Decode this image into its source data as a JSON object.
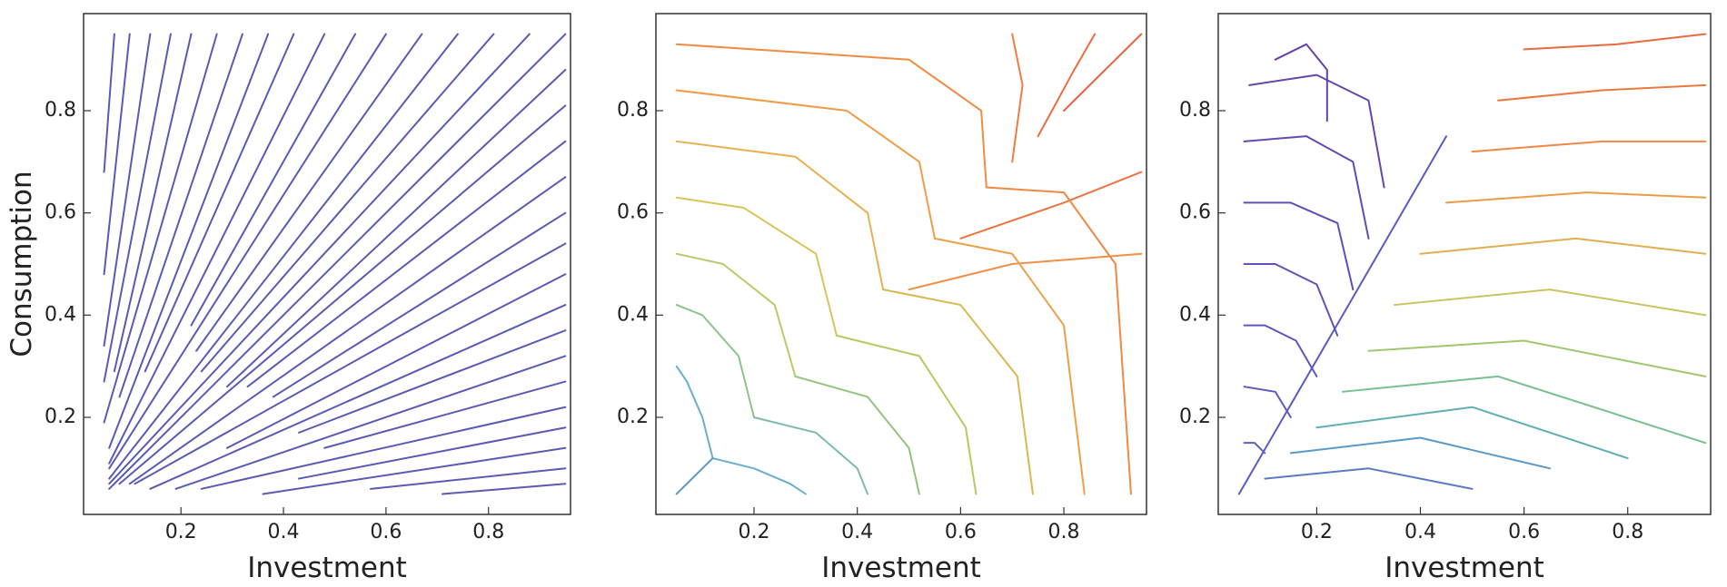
{
  "chart_data": [
    {
      "type": "streamplot",
      "xlabel": "Investment",
      "ylabel": "Consumption",
      "color": "#5a5ab4",
      "xlim": [
        0.01,
        0.96
      ],
      "ylim": [
        0.01,
        0.99
      ],
      "xticks": [
        0.2,
        0.4,
        0.6,
        0.8
      ],
      "yticks": [
        0.2,
        0.4,
        0.6,
        0.8
      ],
      "lines": [
        {
          "x": [
            0.05,
            0.07
          ],
          "y": [
            0.68,
            0.95
          ]
        },
        {
          "x": [
            0.05,
            0.1
          ],
          "y": [
            0.48,
            0.95
          ]
        },
        {
          "x": [
            0.05,
            0.14
          ],
          "y": [
            0.34,
            0.95
          ]
        },
        {
          "x": [
            0.05,
            0.18
          ],
          "y": [
            0.27,
            0.95
          ]
        },
        {
          "x": [
            0.07,
            0.22
          ],
          "y": [
            0.29,
            0.95
          ]
        },
        {
          "x": [
            0.05,
            0.27
          ],
          "y": [
            0.19,
            0.95
          ]
        },
        {
          "x": [
            0.08,
            0.32
          ],
          "y": [
            0.24,
            0.95
          ]
        },
        {
          "x": [
            0.06,
            0.37
          ],
          "y": [
            0.14,
            0.95
          ]
        },
        {
          "x": [
            0.13,
            0.42
          ],
          "y": [
            0.29,
            0.95
          ]
        },
        {
          "x": [
            0.06,
            0.48
          ],
          "y": [
            0.11,
            0.95
          ]
        },
        {
          "x": [
            0.22,
            0.54
          ],
          "y": [
            0.38,
            0.95
          ]
        },
        {
          "x": [
            0.06,
            0.6
          ],
          "y": [
            0.1,
            0.95
          ]
        },
        {
          "x": [
            0.23,
            0.67
          ],
          "y": [
            0.33,
            0.95
          ]
        },
        {
          "x": [
            0.06,
            0.74
          ],
          "y": [
            0.08,
            0.95
          ]
        },
        {
          "x": [
            0.24,
            0.81
          ],
          "y": [
            0.29,
            0.95
          ]
        },
        {
          "x": [
            0.06,
            0.88
          ],
          "y": [
            0.07,
            0.95
          ]
        },
        {
          "x": [
            0.06,
            0.95
          ],
          "y": [
            0.06,
            0.95
          ]
        },
        {
          "x": [
            0.29,
            0.95
          ],
          "y": [
            0.26,
            0.88
          ]
        },
        {
          "x": [
            0.08,
            0.95
          ],
          "y": [
            0.07,
            0.81
          ]
        },
        {
          "x": [
            0.33,
            0.95
          ],
          "y": [
            0.26,
            0.74
          ]
        },
        {
          "x": [
            0.1,
            0.95
          ],
          "y": [
            0.07,
            0.67
          ]
        },
        {
          "x": [
            0.38,
            0.95
          ],
          "y": [
            0.24,
            0.6
          ]
        },
        {
          "x": [
            0.11,
            0.95
          ],
          "y": [
            0.07,
            0.54
          ]
        },
        {
          "x": [
            0.29,
            0.95
          ],
          "y": [
            0.14,
            0.48
          ]
        },
        {
          "x": [
            0.14,
            0.95
          ],
          "y": [
            0.06,
            0.42
          ]
        },
        {
          "x": [
            0.43,
            0.95
          ],
          "y": [
            0.17,
            0.37
          ]
        },
        {
          "x": [
            0.19,
            0.95
          ],
          "y": [
            0.06,
            0.32
          ]
        },
        {
          "x": [
            0.48,
            0.95
          ],
          "y": [
            0.14,
            0.27
          ]
        },
        {
          "x": [
            0.24,
            0.95
          ],
          "y": [
            0.06,
            0.22
          ]
        },
        {
          "x": [
            0.43,
            0.95
          ],
          "y": [
            0.08,
            0.18
          ]
        },
        {
          "x": [
            0.36,
            0.95
          ],
          "y": [
            0.05,
            0.14
          ]
        },
        {
          "x": [
            0.57,
            0.95
          ],
          "y": [
            0.06,
            0.1
          ]
        },
        {
          "x": [
            0.71,
            0.95
          ],
          "y": [
            0.05,
            0.07
          ]
        }
      ]
    },
    {
      "type": "streamplot",
      "xlabel": "Investment",
      "xlim": [
        0.01,
        0.96
      ],
      "ylim": [
        0.01,
        0.99
      ],
      "xticks": [
        0.2,
        0.4,
        0.6,
        0.8
      ],
      "yticks": [
        0.2,
        0.4,
        0.6,
        0.8
      ],
      "lines": [
        {
          "color": "#6aaed0",
          "x": [
            0.12,
            0.1,
            0.07,
            0.05
          ],
          "y": [
            0.12,
            0.2,
            0.27,
            0.3
          ]
        },
        {
          "color": "#8cc48a",
          "x": [
            0.2,
            0.17,
            0.1,
            0.05
          ],
          "y": [
            0.2,
            0.32,
            0.4,
            0.42
          ]
        },
        {
          "color": "#b8cc6a",
          "x": [
            0.28,
            0.24,
            0.14,
            0.05
          ],
          "y": [
            0.28,
            0.42,
            0.5,
            0.52
          ]
        },
        {
          "color": "#d8c458",
          "x": [
            0.36,
            0.32,
            0.18,
            0.05
          ],
          "y": [
            0.36,
            0.52,
            0.61,
            0.63
          ]
        },
        {
          "color": "#e8b050",
          "x": [
            0.45,
            0.42,
            0.28,
            0.05
          ],
          "y": [
            0.45,
            0.6,
            0.71,
            0.74
          ]
        },
        {
          "color": "#f09c48",
          "x": [
            0.55,
            0.52,
            0.38,
            0.05
          ],
          "y": [
            0.55,
            0.7,
            0.8,
            0.84
          ]
        },
        {
          "color": "#f08c44",
          "x": [
            0.65,
            0.64,
            0.5,
            0.05
          ],
          "y": [
            0.65,
            0.8,
            0.9,
            0.93
          ]
        },
        {
          "color": "#f07c44",
          "x": [
            0.7,
            0.72,
            0.7
          ],
          "y": [
            0.7,
            0.85,
            0.95
          ]
        },
        {
          "color": "#ec6c40",
          "x": [
            0.75,
            0.82,
            0.86
          ],
          "y": [
            0.75,
            0.88,
            0.95
          ]
        },
        {
          "color": "#e86040",
          "x": [
            0.8,
            0.9,
            0.95
          ],
          "y": [
            0.8,
            0.9,
            0.95
          ]
        },
        {
          "color": "#ec7440",
          "x": [
            0.6,
            0.8,
            0.95
          ],
          "y": [
            0.55,
            0.62,
            0.68
          ]
        },
        {
          "color": "#f09048",
          "x": [
            0.5,
            0.7,
            0.95
          ],
          "y": [
            0.45,
            0.5,
            0.52
          ]
        },
        {
          "color": "#6aaed0",
          "x": [
            0.12,
            0.2,
            0.27,
            0.3
          ],
          "y": [
            0.12,
            0.1,
            0.07,
            0.05
          ]
        },
        {
          "color": "#7cbcaa",
          "x": [
            0.2,
            0.32,
            0.4,
            0.42
          ],
          "y": [
            0.2,
            0.17,
            0.1,
            0.05
          ]
        },
        {
          "color": "#94c47c",
          "x": [
            0.28,
            0.42,
            0.5,
            0.52
          ],
          "y": [
            0.28,
            0.24,
            0.14,
            0.05
          ]
        },
        {
          "color": "#b8c860",
          "x": [
            0.36,
            0.52,
            0.61,
            0.63
          ],
          "y": [
            0.36,
            0.32,
            0.18,
            0.05
          ]
        },
        {
          "color": "#d8b850",
          "x": [
            0.45,
            0.6,
            0.71,
            0.74
          ],
          "y": [
            0.45,
            0.42,
            0.28,
            0.05
          ]
        },
        {
          "color": "#eca048",
          "x": [
            0.55,
            0.7,
            0.8,
            0.84
          ],
          "y": [
            0.55,
            0.52,
            0.38,
            0.05
          ]
        },
        {
          "color": "#f08844",
          "x": [
            0.65,
            0.8,
            0.9,
            0.93
          ],
          "y": [
            0.65,
            0.64,
            0.5,
            0.05
          ]
        },
        {
          "color": "#5a96c8",
          "x": [
            0.05,
            0.12
          ],
          "y": [
            0.05,
            0.12
          ]
        }
      ]
    },
    {
      "type": "streamplot",
      "xlabel": "Investment",
      "xlim": [
        0.01,
        0.96
      ],
      "ylim": [
        0.01,
        0.99
      ],
      "xticks": [
        0.2,
        0.4,
        0.6,
        0.8
      ],
      "yticks": [
        0.2,
        0.4,
        0.6,
        0.8
      ],
      "lines": [
        {
          "color": "#5a5ac0",
          "x": [
            0.05,
            0.25,
            0.45
          ],
          "y": [
            0.05,
            0.4,
            0.75
          ]
        },
        {
          "color": "#5c62c4",
          "x": [
            0.1,
            0.08,
            0.06
          ],
          "y": [
            0.13,
            0.15,
            0.15
          ]
        },
        {
          "color": "#5c5cc0",
          "x": [
            0.15,
            0.12,
            0.06
          ],
          "y": [
            0.2,
            0.25,
            0.26
          ]
        },
        {
          "color": "#5e56bc",
          "x": [
            0.2,
            0.16,
            0.1,
            0.06
          ],
          "y": [
            0.28,
            0.35,
            0.38,
            0.38
          ]
        },
        {
          "color": "#6052b8",
          "x": [
            0.24,
            0.2,
            0.12,
            0.06
          ],
          "y": [
            0.36,
            0.46,
            0.5,
            0.5
          ]
        },
        {
          "color": "#624eb4",
          "x": [
            0.27,
            0.24,
            0.15,
            0.06
          ],
          "y": [
            0.45,
            0.58,
            0.62,
            0.62
          ]
        },
        {
          "color": "#644ab0",
          "x": [
            0.3,
            0.27,
            0.18,
            0.06
          ],
          "y": [
            0.55,
            0.7,
            0.75,
            0.74
          ]
        },
        {
          "color": "#6646ac",
          "x": [
            0.33,
            0.3,
            0.2,
            0.07
          ],
          "y": [
            0.65,
            0.82,
            0.87,
            0.85
          ]
        },
        {
          "color": "#6642a8",
          "x": [
            0.12,
            0.18,
            0.22,
            0.22
          ],
          "y": [
            0.9,
            0.93,
            0.88,
            0.78
          ]
        },
        {
          "color": "#5a7ac8",
          "x": [
            0.1,
            0.3,
            0.5
          ],
          "y": [
            0.08,
            0.1,
            0.06
          ]
        },
        {
          "color": "#5a9ac8",
          "x": [
            0.15,
            0.4,
            0.65
          ],
          "y": [
            0.13,
            0.16,
            0.1
          ]
        },
        {
          "color": "#60b0b0",
          "x": [
            0.2,
            0.5,
            0.8
          ],
          "y": [
            0.18,
            0.22,
            0.12
          ]
        },
        {
          "color": "#78c090",
          "x": [
            0.25,
            0.55,
            0.95
          ],
          "y": [
            0.25,
            0.28,
            0.15
          ]
        },
        {
          "color": "#a0c870",
          "x": [
            0.3,
            0.6,
            0.95
          ],
          "y": [
            0.33,
            0.35,
            0.28
          ]
        },
        {
          "color": "#c8c460",
          "x": [
            0.35,
            0.65,
            0.95
          ],
          "y": [
            0.42,
            0.45,
            0.4
          ]
        },
        {
          "color": "#e0b050",
          "x": [
            0.4,
            0.7,
            0.95
          ],
          "y": [
            0.52,
            0.55,
            0.52
          ]
        },
        {
          "color": "#ec9c48",
          "x": [
            0.45,
            0.72,
            0.95
          ],
          "y": [
            0.62,
            0.64,
            0.63
          ]
        },
        {
          "color": "#f08844",
          "x": [
            0.5,
            0.75,
            0.95
          ],
          "y": [
            0.72,
            0.74,
            0.74
          ]
        },
        {
          "color": "#ec7840",
          "x": [
            0.55,
            0.75,
            0.95
          ],
          "y": [
            0.82,
            0.84,
            0.85
          ]
        },
        {
          "color": "#e86a40",
          "x": [
            0.6,
            0.78,
            0.95
          ],
          "y": [
            0.92,
            0.93,
            0.95
          ]
        }
      ]
    }
  ]
}
